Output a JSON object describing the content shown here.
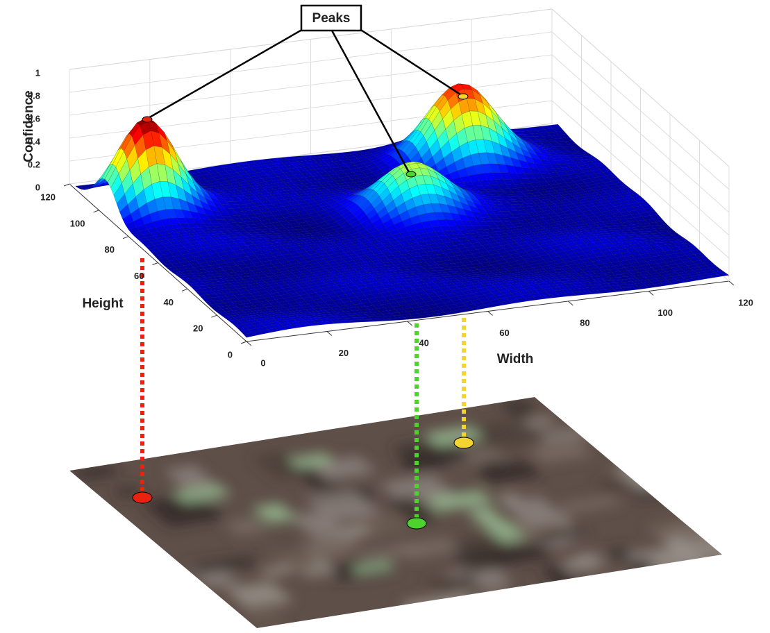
{
  "callout": {
    "label": "Peaks"
  },
  "axes": {
    "z": {
      "label": "Confidence",
      "ticks": [
        0,
        0.2,
        0.4,
        0.6,
        0.8,
        1
      ]
    },
    "y": {
      "label": "Height",
      "ticks": [
        0,
        20,
        40,
        60,
        80,
        100,
        120
      ]
    },
    "x": {
      "label": "Width",
      "ticks": [
        0,
        20,
        40,
        60,
        80,
        100,
        120
      ]
    }
  }
}
